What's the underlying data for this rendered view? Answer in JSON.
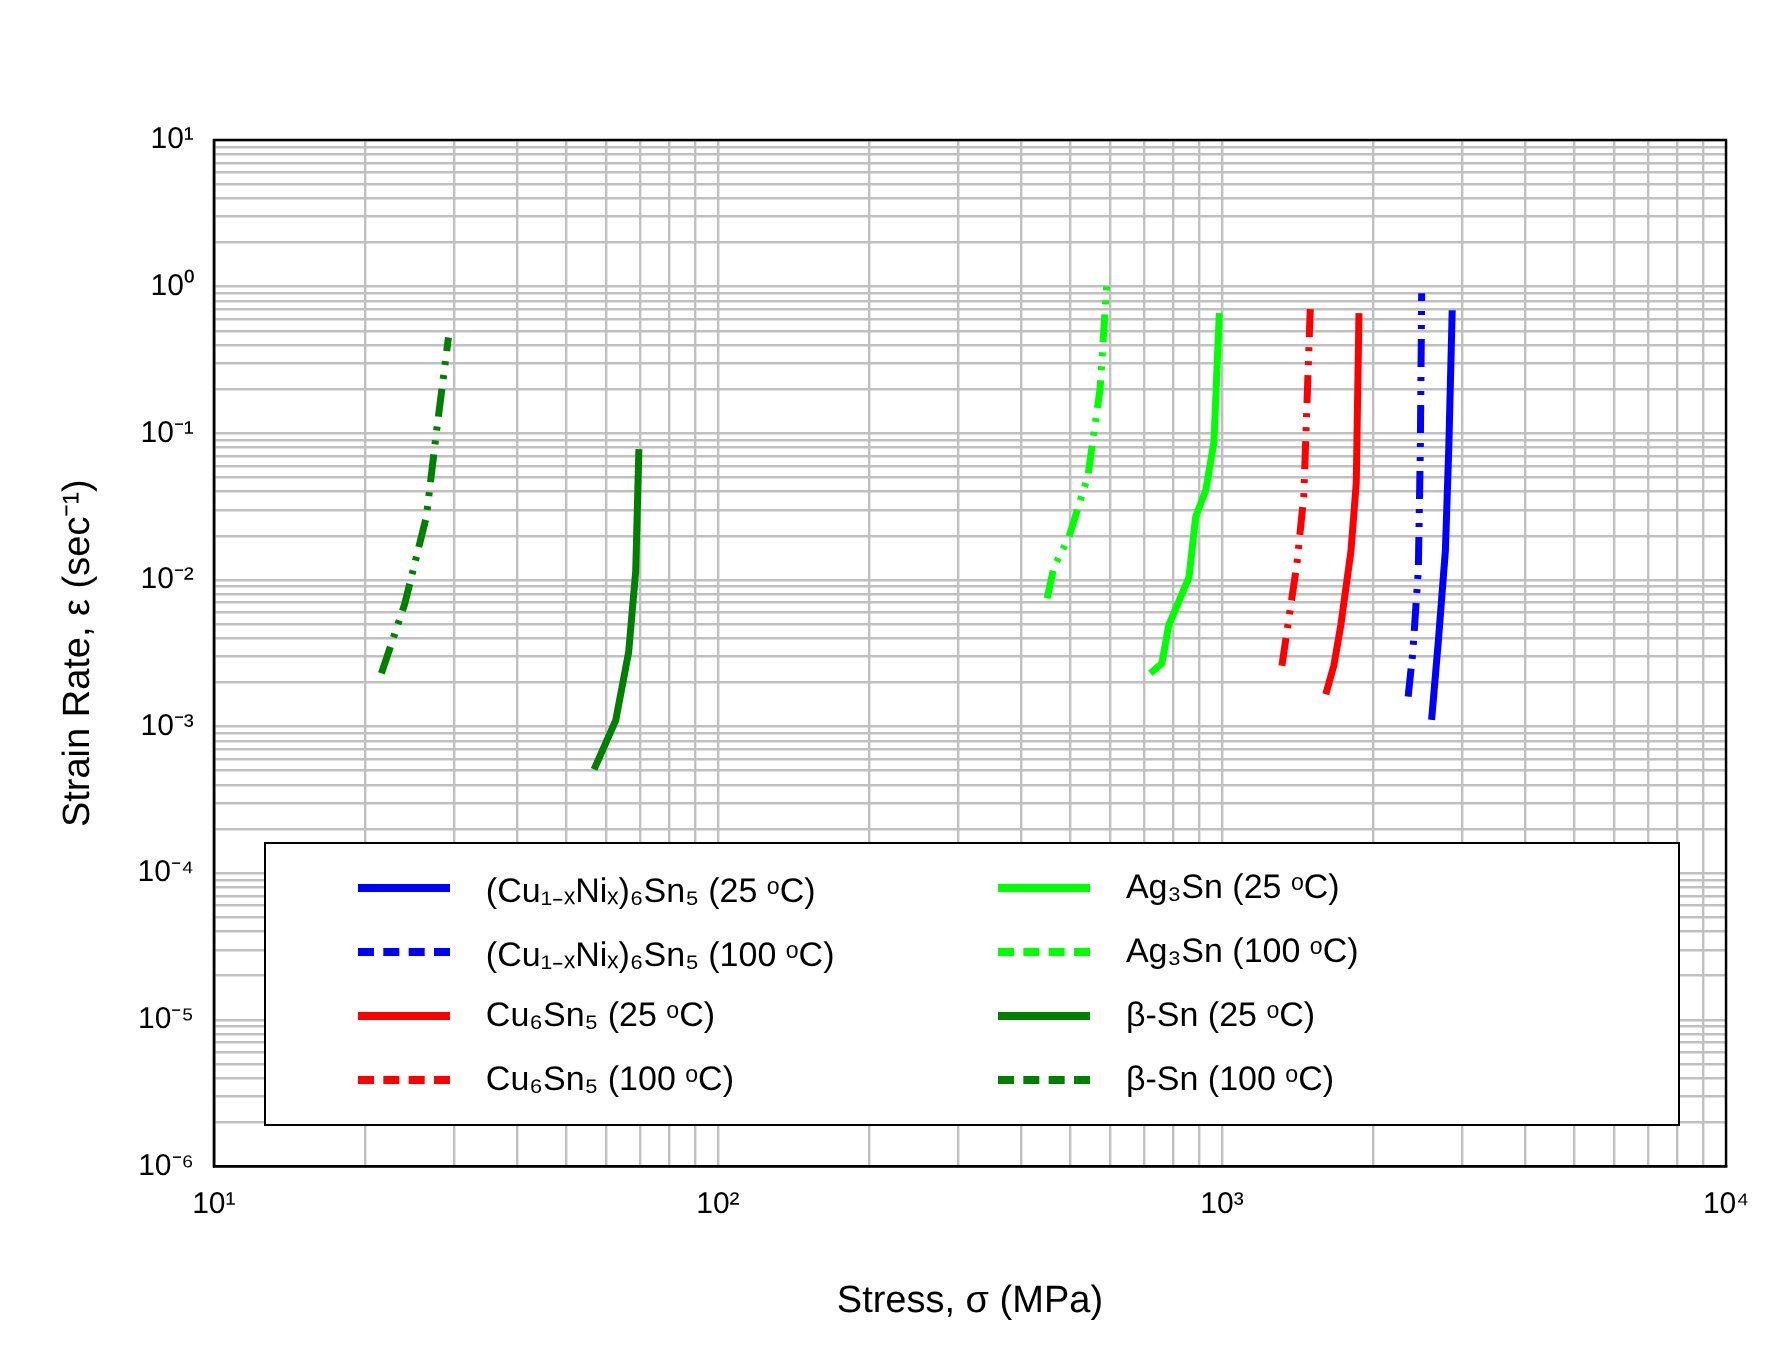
{
  "chart_data": {
    "type": "line",
    "xlabel": "Stress, σ (MPa)",
    "ylabel": "Strain Rate, ε (sec⁻¹)",
    "log": "xy",
    "grid": true,
    "legend": "bottom",
    "marker": "none",
    "xlim": [
      10,
      10000
    ],
    "xticks": [
      {
        "value": 10,
        "label": "10¹"
      },
      {
        "value": 100,
        "label": "10²"
      },
      {
        "value": 1000,
        "label": "10³"
      },
      {
        "value": 10000,
        "label": "10⁴"
      }
    ],
    "ylim": [
      1e-06,
      10
    ],
    "yticks": [
      {
        "value": 1e-06,
        "label": "10⁻⁶"
      },
      {
        "value": 1e-05,
        "label": "10⁻⁵"
      },
      {
        "value": 0.0001,
        "label": "10⁻⁴"
      },
      {
        "value": 0.001,
        "label": "10⁻³"
      },
      {
        "value": 0.01,
        "label": "10⁻²"
      },
      {
        "value": 0.1,
        "label": "10⁻¹"
      },
      {
        "value": 1,
        "label": "10⁰"
      },
      {
        "value": 10,
        "label": "10¹"
      }
    ],
    "series": [
      {
        "name": "(Cu₁₋ₓNiₓ)₆Sn₅ (25 ᵒC)",
        "color": "#0000ff",
        "line_style": "solid",
        "x": [
          2606,
          2690,
          2775,
          2818,
          2863
        ],
        "values": [
          0.00111,
          0.004,
          0.0158,
          0.078,
          0.69
        ]
      },
      {
        "name": "(Cu₁₋ₓNiₓ)₆Sn₅ (100 ᵒC)",
        "color": "#0000ff",
        "line_style": "dashed",
        "x": [
          2341,
          2391,
          2452,
          2475,
          2490
        ],
        "values": [
          0.0016,
          0.0032,
          0.0115,
          0.078,
          0.9
        ]
      },
      {
        "name": "Cu₆Sn₅ (25 ᵒC)",
        "color": "#ff0000",
        "line_style": "solid",
        "x": [
          1607,
          1667,
          1721,
          1803,
          1847,
          1870
        ],
        "values": [
          0.00166,
          0.0026,
          0.0049,
          0.0158,
          0.046,
          0.66
        ]
      },
      {
        "name": "Cu₆Sn₅ (100 ᵒC)",
        "color": "#ff0000",
        "line_style": "dashed",
        "x": [
          1315,
          1408,
          1453,
          1480,
          1499
        ],
        "values": [
          0.0026,
          0.0128,
          0.037,
          0.23,
          0.81
        ]
      },
      {
        "name": "Ag₃Sn (25 ᵒC)",
        "color": "#00ff00",
        "line_style": "solid",
        "x": [
          721,
          760,
          784,
          860,
          887,
          929,
          964,
          988
        ],
        "values": [
          0.0023,
          0.0027,
          0.0049,
          0.0104,
          0.027,
          0.041,
          0.087,
          0.66
        ]
      },
      {
        "name": "Ag₃Sn (100 ᵒC)",
        "color": "#00ff00",
        "line_style": "dashed",
        "x": [
          450,
          464,
          497,
          542,
          573,
          591
        ],
        "values": [
          0.0075,
          0.0122,
          0.0196,
          0.051,
          0.2,
          1.06
        ]
      },
      {
        "name": "β-Sn (25 ᵒC)",
        "color": "#008000",
        "line_style": "solid",
        "x": [
          56.8,
          62.7,
          66.5,
          68.7,
          69.7
        ],
        "values": [
          0.00051,
          0.0011,
          0.0032,
          0.0115,
          0.078
        ]
      },
      {
        "name": "β-Sn (100 ᵒC)",
        "color": "#008000",
        "line_style": "dashed",
        "x": [
          21.5,
          23.9,
          26.4,
          27.7,
          29.2
        ],
        "values": [
          0.0023,
          0.0068,
          0.027,
          0.108,
          0.45
        ]
      }
    ]
  }
}
